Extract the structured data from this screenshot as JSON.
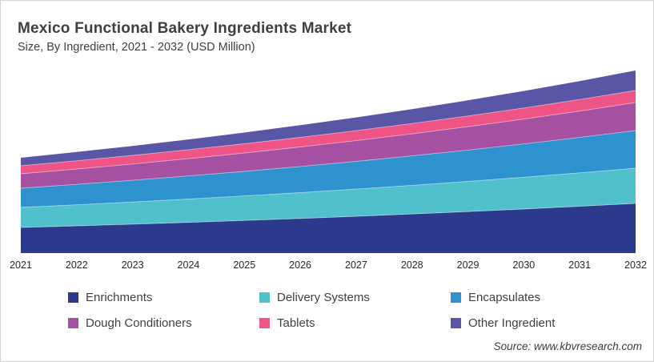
{
  "source": {
    "label": "Source: www.kbvresearch.com"
  },
  "chart_data": {
    "type": "area",
    "stacked": true,
    "title": "Mexico Functional Bakery Ingredients Market",
    "subtitle": "Size, By Ingredient, 2021 - 2032 (USD Million)",
    "xlabel": "",
    "ylabel": "",
    "y_axis_visible": false,
    "grid": false,
    "legend_position": "bottom",
    "categories": [
      2021,
      2022,
      2023,
      2024,
      2025,
      2026,
      2027,
      2028,
      2029,
      2030,
      2031,
      2032
    ],
    "ylim": [
      0,
      231
    ],
    "series": [
      {
        "name": "Enrichments",
        "color": "#2B3A8C",
        "values": [
          32.0,
          34.0,
          36.1,
          38.3,
          40.7,
          43.2,
          45.9,
          48.8,
          51.8,
          55.0,
          58.4,
          62.0
        ]
      },
      {
        "name": "Delivery Systems",
        "color": "#50C1CC",
        "values": [
          25.0,
          26.3,
          27.7,
          29.2,
          30.7,
          32.3,
          34.0,
          35.8,
          37.7,
          39.7,
          41.8,
          44.0
        ]
      },
      {
        "name": "Encapsulates",
        "color": "#2D92CE",
        "values": [
          24.0,
          25.5,
          27.1,
          28.8,
          30.6,
          32.6,
          34.6,
          36.8,
          39.1,
          41.6,
          44.2,
          47.0
        ]
      },
      {
        "name": "Dough Conditioners",
        "color": "#A650A1",
        "values": [
          18.0,
          19.1,
          20.3,
          21.6,
          22.9,
          24.4,
          25.9,
          27.5,
          29.2,
          31.0,
          32.9,
          35.0
        ]
      },
      {
        "name": "Tablets",
        "color": "#EE5586",
        "values": [
          10.0,
          10.4,
          10.8,
          11.2,
          11.6,
          12.0,
          12.5,
          12.9,
          13.4,
          13.9,
          14.5,
          15.0
        ]
      },
      {
        "name": "Other Ingredient",
        "color": "#5A56A6",
        "values": [
          10.0,
          10.9,
          11.8,
          12.8,
          14.0,
          15.2,
          16.5,
          17.9,
          19.5,
          21.2,
          23.0,
          25.0
        ]
      }
    ]
  }
}
